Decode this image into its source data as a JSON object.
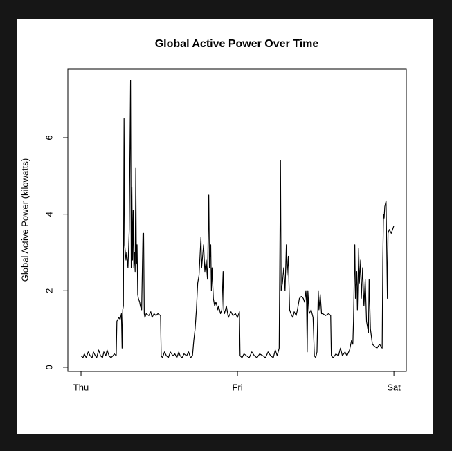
{
  "chart_data": {
    "type": "line",
    "title": "Global Active Power Over Time",
    "y_label": "Global Active Power (kilowatts)",
    "color": "#000000",
    "grid": false,
    "xlim": [
      -2.02,
      49.9
    ],
    "ylim": [
      -0.11,
      7.79
    ],
    "xticks": [
      {
        "value": 0,
        "label": "Thu"
      },
      {
        "value": 24,
        "label": "Fri"
      },
      {
        "value": 48,
        "label": "Sat"
      }
    ],
    "yticks": [
      0,
      2,
      4,
      6
    ],
    "x": [
      0,
      0.3,
      0.5,
      0.8,
      1.1,
      1.4,
      1.7,
      1.9,
      2.2,
      2.4,
      2.7,
      3.0,
      3.3,
      3.5,
      3.8,
      4.0,
      4.3,
      4.6,
      4.9,
      5.1,
      5.4,
      5.5,
      5.8,
      6.0,
      6.2,
      6.3,
      6.4,
      6.5,
      6.6,
      6.7,
      6.9,
      7.0,
      7.2,
      7.4,
      7.6,
      7.7,
      7.8,
      7.9,
      8.0,
      8.1,
      8.2,
      8.3,
      8.4,
      8.5,
      8.6,
      8.7,
      8.8,
      9.0,
      9.1,
      9.3,
      9.5,
      9.6,
      9.7,
      9.8,
      10.0,
      10.4,
      10.7,
      10.9,
      11.2,
      11.5,
      11.8,
      12.2,
      12.3,
      12.5,
      12.8,
      13.1,
      13.4,
      13.7,
      14.1,
      14.4,
      14.7,
      15.0,
      15.2,
      15.5,
      15.8,
      16.2,
      16.5,
      16.8,
      17.1,
      17.3,
      17.5,
      17.7,
      17.9,
      18.1,
      18.4,
      18.5,
      18.8,
      19.0,
      19.2,
      19.4,
      19.6,
      19.7,
      19.9,
      20.0,
      20.1,
      20.3,
      20.5,
      20.7,
      21.0,
      21.1,
      21.4,
      21.6,
      21.8,
      21.9,
      22.0,
      22.3,
      22.6,
      23.0,
      23.3,
      23.7,
      24.0,
      24.3,
      24.4,
      24.7,
      25.0,
      25.4,
      25.8,
      26.2,
      26.6,
      27.0,
      27.4,
      27.9,
      28.3,
      28.7,
      29.1,
      29.5,
      29.8,
      30.1,
      30.4,
      30.6,
      30.7,
      30.9,
      31.1,
      31.3,
      31.5,
      31.6,
      31.8,
      32.0,
      32.2,
      32.5,
      32.7,
      33.0,
      33.2,
      33.5,
      33.8,
      34.1,
      34.3,
      34.5,
      34.6,
      34.7,
      34.8,
      35.0,
      35.3,
      35.6,
      35.8,
      36.0,
      36.2,
      36.4,
      36.5,
      36.7,
      36.9,
      37.1,
      37.5,
      38.0,
      38.3,
      38.4,
      38.7,
      39.1,
      39.5,
      39.8,
      40.1,
      40.5,
      40.8,
      41.2,
      41.5,
      41.7,
      41.8,
      42.0,
      42.1,
      42.3,
      42.4,
      42.6,
      42.7,
      42.9,
      43.0,
      43.2,
      43.4,
      43.6,
      43.8,
      44.1,
      44.2,
      44.4,
      44.7,
      45.0,
      45.4,
      45.8,
      46.2,
      46.3,
      46.4,
      46.5,
      46.6,
      46.8,
      47.0,
      47.1,
      47.3,
      47.6,
      48.0
    ],
    "values": [
      0.3,
      0.25,
      0.35,
      0.25,
      0.4,
      0.3,
      0.25,
      0.4,
      0.3,
      0.25,
      0.45,
      0.3,
      0.25,
      0.4,
      0.3,
      0.45,
      0.3,
      0.25,
      0.3,
      0.35,
      0.3,
      1.2,
      1.3,
      1.25,
      1.4,
      0.5,
      1.5,
      1.6,
      6.5,
      3.2,
      2.8,
      3.0,
      2.6,
      3.6,
      7.5,
      2.6,
      4.7,
      2.8,
      4.1,
      2.6,
      3.0,
      2.5,
      5.2,
      2.7,
      3.2,
      1.9,
      1.8,
      1.7,
      1.6,
      1.5,
      3.5,
      3.5,
      1.4,
      1.3,
      1.4,
      1.35,
      1.45,
      1.3,
      1.4,
      1.35,
      1.4,
      1.35,
      0.3,
      0.25,
      0.4,
      0.3,
      0.25,
      0.4,
      0.3,
      0.35,
      0.25,
      0.4,
      0.3,
      0.25,
      0.35,
      0.3,
      0.4,
      0.25,
      0.3,
      0.7,
      1.0,
      1.5,
      2.2,
      2.4,
      3.4,
      2.6,
      3.2,
      2.5,
      2.8,
      2.3,
      4.5,
      2.6,
      3.2,
      2.0,
      2.6,
      1.8,
      1.6,
      1.7,
      1.5,
      1.6,
      1.4,
      1.5,
      2.5,
      1.5,
      1.4,
      1.6,
      1.3,
      1.45,
      1.35,
      1.4,
      1.3,
      1.45,
      0.3,
      0.25,
      0.35,
      0.3,
      0.25,
      0.4,
      0.3,
      0.25,
      0.35,
      0.3,
      0.25,
      0.4,
      0.3,
      0.25,
      0.45,
      0.3,
      0.5,
      5.4,
      2.0,
      2.2,
      2.6,
      2.0,
      3.2,
      2.4,
      2.9,
      1.5,
      1.4,
      1.3,
      1.45,
      1.35,
      1.5,
      1.8,
      1.85,
      1.8,
      1.7,
      2.0,
      1.7,
      0.4,
      2.0,
      1.4,
      1.5,
      1.3,
      0.3,
      0.25,
      0.4,
      2.0,
      1.5,
      1.9,
      1.4,
      1.4,
      1.35,
      1.4,
      1.35,
      0.3,
      0.25,
      0.35,
      0.3,
      0.5,
      0.3,
      0.4,
      0.3,
      0.45,
      0.7,
      0.6,
      1.2,
      3.2,
      1.8,
      2.5,
      1.5,
      3.1,
      2.2,
      2.8,
      1.8,
      2.6,
      1.6,
      2.3,
      1.2,
      0.9,
      2.3,
      1.0,
      0.6,
      0.55,
      0.5,
      0.6,
      0.5,
      2.8,
      4.0,
      3.9,
      4.2,
      4.35,
      1.8,
      3.5,
      3.6,
      3.5,
      3.7
    ]
  }
}
